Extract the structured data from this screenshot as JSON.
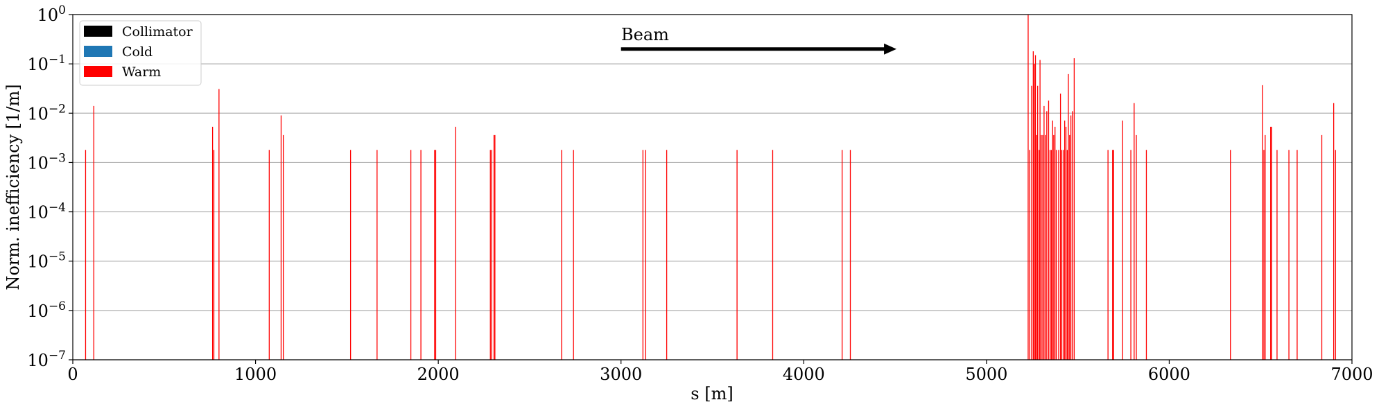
{
  "chart_data": {
    "type": "bar",
    "xlabel": "s [m]",
    "ylabel": "Norm. inefficiency [1/m]",
    "xlim": [
      0,
      7000
    ],
    "ylim": [
      1e-07,
      1
    ],
    "yscale": "log",
    "grid": "horizontal",
    "x_ticks": [
      0,
      1000,
      2000,
      3000,
      4000,
      5000,
      6000,
      7000
    ],
    "x_tick_labels": [
      "0",
      "1000",
      "2000",
      "3000",
      "4000",
      "5000",
      "6000",
      "7000"
    ],
    "y_ticks": [
      1e-07,
      1e-06,
      1e-05,
      0.0001,
      0.001,
      0.01,
      0.1,
      1
    ],
    "y_tick_labels": [
      {
        "base": "10",
        "exp": "−7"
      },
      {
        "base": "10",
        "exp": "−6"
      },
      {
        "base": "10",
        "exp": "−5"
      },
      {
        "base": "10",
        "exp": "−4"
      },
      {
        "base": "10",
        "exp": "−3"
      },
      {
        "base": "10",
        "exp": "−2"
      },
      {
        "base": "10",
        "exp": "−1"
      },
      {
        "base": "10",
        "exp": "0"
      }
    ],
    "legend": {
      "position": "top-left",
      "items": [
        {
          "label": "Collimator",
          "color": "#000000"
        },
        {
          "label": "Cold",
          "color": "#1f77b4"
        },
        {
          "label": "Warm",
          "color": "#ff0000"
        }
      ]
    },
    "annotation": {
      "text": "Beam",
      "arrow_from_s": 3000,
      "arrow_to_s": 4500,
      "arrow_y": 0.2
    },
    "series": [
      {
        "name": "Warm",
        "color": "#ff0000",
        "points": [
          [
            70,
            0.0018
          ],
          [
            115,
            0.014
          ],
          [
            765,
            0.0053
          ],
          [
            772,
            0.0018
          ],
          [
            800,
            0.031
          ],
          [
            1075,
            0.0018
          ],
          [
            1140,
            0.009
          ],
          [
            1152,
            0.0036
          ],
          [
            1520,
            0.0018
          ],
          [
            1665,
            0.0018
          ],
          [
            1850,
            0.0018
          ],
          [
            1905,
            0.0018
          ],
          [
            1980,
            0.0018
          ],
          [
            1986,
            0.0018
          ],
          [
            2095,
            0.0053
          ],
          [
            2285,
            0.0018
          ],
          [
            2292,
            0.0018
          ],
          [
            2305,
            0.0036
          ],
          [
            2310,
            0.0036
          ],
          [
            2675,
            0.0018
          ],
          [
            2740,
            0.0018
          ],
          [
            3120,
            0.0018
          ],
          [
            3135,
            0.0018
          ],
          [
            3250,
            0.0018
          ],
          [
            3635,
            0.0018
          ],
          [
            3830,
            0.0018
          ],
          [
            4210,
            0.0018
          ],
          [
            4255,
            0.0018
          ],
          [
            5228,
            1.0
          ],
          [
            5236,
            0.0018
          ],
          [
            5247,
            0.036
          ],
          [
            5256,
            0.18
          ],
          [
            5262,
            0.1
          ],
          [
            5268,
            0.15
          ],
          [
            5275,
            0.0036
          ],
          [
            5280,
            0.036
          ],
          [
            5288,
            0.0018
          ],
          [
            5293,
            0.12
          ],
          [
            5300,
            0.0036
          ],
          [
            5308,
            0.0036
          ],
          [
            5315,
            0.014
          ],
          [
            5322,
            0.0036
          ],
          [
            5330,
            0.011
          ],
          [
            5340,
            0.018
          ],
          [
            5348,
            0.0018
          ],
          [
            5355,
            0.0018
          ],
          [
            5362,
            0.0071
          ],
          [
            5368,
            0.0036
          ],
          [
            5375,
            0.0053
          ],
          [
            5382,
            0.0018
          ],
          [
            5395,
            0.0018
          ],
          [
            5405,
            0.025
          ],
          [
            5412,
            0.0018
          ],
          [
            5420,
            0.0018
          ],
          [
            5428,
            0.0071
          ],
          [
            5435,
            0.0053
          ],
          [
            5442,
            0.0018
          ],
          [
            5448,
            0.062
          ],
          [
            5455,
            0.0036
          ],
          [
            5462,
            0.009
          ],
          [
            5470,
            0.011
          ],
          [
            5480,
            0.13
          ],
          [
            5665,
            0.0018
          ],
          [
            5690,
            0.0018
          ],
          [
            5696,
            0.0018
          ],
          [
            5745,
            0.0071
          ],
          [
            5790,
            0.0018
          ],
          [
            5808,
            0.016
          ],
          [
            5820,
            0.0036
          ],
          [
            5875,
            0.0018
          ],
          [
            6335,
            0.0018
          ],
          [
            6510,
            0.037
          ],
          [
            6518,
            0.0018
          ],
          [
            6525,
            0.0036
          ],
          [
            6555,
            0.0053
          ],
          [
            6560,
            0.0053
          ],
          [
            6590,
            0.0018
          ],
          [
            6655,
            0.0018
          ],
          [
            6700,
            0.0018
          ],
          [
            6835,
            0.0036
          ],
          [
            6900,
            0.016
          ],
          [
            6910,
            0.0018
          ]
        ]
      }
    ]
  }
}
